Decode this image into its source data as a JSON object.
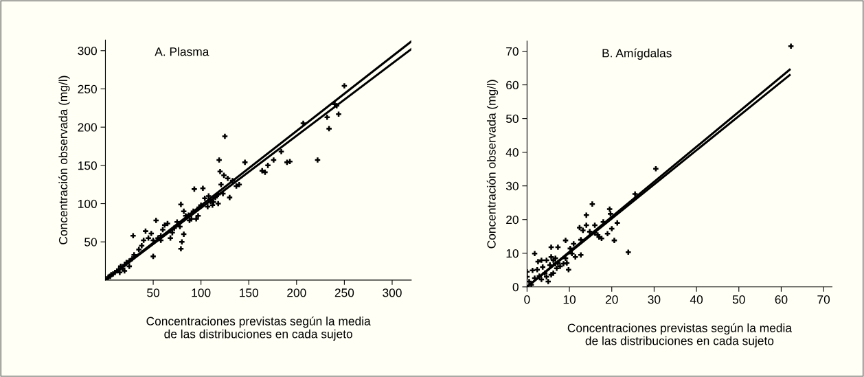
{
  "chart_data": [
    {
      "type": "scatter",
      "title": "A. Plasma",
      "xlabel": "Concentraciones previstas según la media\nde las distribuciones en cada sujeto",
      "ylabel": "Concentración observada (mg/l)",
      "xlim": [
        0,
        320
      ],
      "ylim": [
        0,
        314
      ],
      "xticks": [
        50,
        100,
        150,
        200,
        250,
        300
      ],
      "yticks": [
        50,
        100,
        150,
        200,
        250,
        300
      ],
      "grid": false,
      "legend": false,
      "marker": "cross",
      "series": [
        {
          "color": "#000000",
          "x": [
            250,
            240,
            242,
            244,
            232,
            234,
            222,
            207,
            190,
            184,
            176,
            170,
            167,
            164,
            146,
            140,
            137,
            133,
            128,
            124,
            125,
            120,
            119,
            121,
            123,
            118,
            115,
            112,
            110,
            107,
            104,
            102,
            100,
            97,
            95,
            93,
            90,
            87,
            84,
            79,
            82,
            79,
            80,
            82,
            78,
            75,
            70,
            65,
            62,
            60,
            58,
            55,
            53,
            50,
            48,
            45,
            42,
            40,
            38,
            29,
            35,
            30,
            28,
            25,
            22,
            20,
            18,
            16,
            14,
            12,
            10,
            8,
            6,
            5,
            3,
            15,
            20,
            25,
            50,
            68,
            72,
            92,
            98,
            108,
            118,
            58,
            88,
            113,
            130,
            193
          ],
          "values": [
            254,
            230,
            228,
            217,
            213,
            198,
            157,
            205,
            154,
            168,
            157,
            150,
            141,
            143,
            154,
            125,
            123,
            130,
            133,
            137,
            188,
            142,
            157,
            125,
            113,
            100,
            108,
            98,
            103,
            96,
            107,
            120,
            98,
            84,
            80,
            119,
            80,
            85,
            84,
            99,
            90,
            41,
            50,
            60,
            70,
            76,
            62,
            74,
            72,
            66,
            58,
            55,
            78,
            52,
            61,
            55,
            64,
            52,
            45,
            58,
            40,
            33,
            28,
            25,
            23,
            20,
            15,
            18,
            14,
            12,
            10,
            8,
            7,
            5,
            4,
            10,
            12,
            18,
            31,
            55,
            68,
            90,
            95,
            110,
            112,
            52,
            78,
            102,
            108,
            155
          ]
        },
        {
          "type": "line",
          "color": "#000000",
          "marker": "none",
          "x": [
            0,
            320
          ],
          "values": [
            0,
            312
          ]
        },
        {
          "type": "line",
          "color": "#000000",
          "marker": "none",
          "x": [
            0,
            320
          ],
          "values": [
            0,
            302
          ]
        }
      ]
    },
    {
      "type": "scatter",
      "title": "B. Amígdalas",
      "xlabel": "Concentraciones previstas según la media\nde las distribuciones en cada sujeto",
      "ylabel": "Concentración observada (mg/l)",
      "xlim": [
        0,
        72
      ],
      "ylim": [
        0,
        73
      ],
      "xticks": [
        0,
        10,
        20,
        30,
        40,
        50,
        60,
        70
      ],
      "yticks": [
        0,
        10,
        20,
        30,
        40,
        50,
        60,
        70
      ],
      "grid": false,
      "legend": false,
      "marker": "cross",
      "series": [
        {
          "color": "#000000",
          "x": [
            62.3,
            30.4,
            25.5,
            15.4,
            14.0,
            19.5,
            19.7,
            21.3,
            20,
            19,
            20.6,
            23.9,
            18,
            16,
            14,
            12.4,
            13.2,
            14.8,
            16,
            16.7,
            17.6,
            17,
            12.7,
            11,
            9.1,
            10.2,
            7.3,
            5.7,
            10.6,
            12.7,
            11.4,
            9.1,
            9.4,
            9.8,
            1.8,
            2.6,
            3.4,
            4.6,
            5.7,
            6.2,
            6.7,
            7.3,
            5.4,
            3.7,
            2.4,
            1.3,
            0,
            0,
            0.5,
            1,
            1.8,
            2.9,
            3.4,
            4.6,
            5,
            5.7,
            4.2,
            6.2,
            7,
            7.8,
            8.6,
            6.7
          ],
          "values": [
            71.5,
            35.1,
            27.6,
            24.6,
            21.3,
            23.1,
            21.7,
            19,
            17.3,
            15.8,
            13.8,
            10.3,
            19.3,
            18.3,
            18.3,
            17.6,
            16.8,
            16.4,
            16,
            15.4,
            14.4,
            14.8,
            14,
            12.8,
            13.8,
            11.4,
            11.8,
            11.8,
            9.9,
            9.5,
            8.9,
            8.5,
            7.1,
            5.1,
            9.9,
            7.5,
            7.9,
            7.9,
            8.9,
            7.9,
            8.5,
            7.1,
            6.5,
            5.9,
            5.1,
            4.9,
            4.5,
            3,
            1.6,
            0.6,
            2.6,
            3.2,
            2.2,
            3,
            1.6,
            3.6,
            4.1,
            4.1,
            5.5,
            6.1,
            6.9,
            6.9
          ]
        },
        {
          "type": "line",
          "color": "#000000",
          "marker": "none",
          "x": [
            0,
            62
          ],
          "values": [
            0,
            64.5
          ]
        },
        {
          "type": "line",
          "color": "#000000",
          "marker": "none",
          "x": [
            0,
            62
          ],
          "values": [
            0,
            62.9
          ]
        }
      ]
    }
  ]
}
